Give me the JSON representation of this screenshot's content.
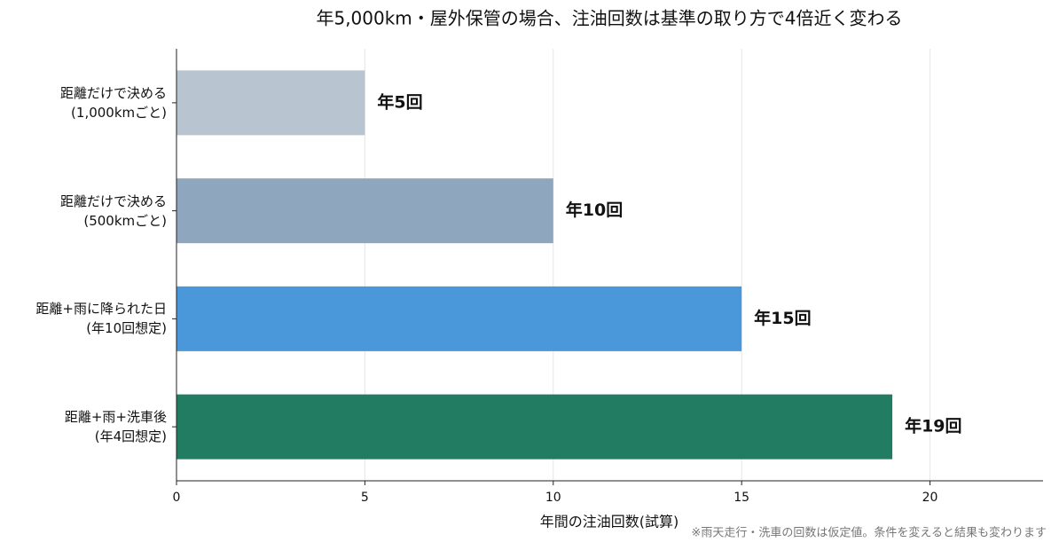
{
  "chart_data": {
    "type": "barh",
    "title": "年5,000km・屋外保管の場合、注油回数は基準の取り方で4倍近く変わる",
    "categories": [
      "距離だけで決める\n(1,000kmごと)",
      "距離だけで決める\n(500kmごと)",
      "距離+雨に降られた日\n(年10回想定)",
      "距離+雨+洗車後\n(年4回想定)"
    ],
    "values": [
      5,
      10,
      15,
      19
    ],
    "value_labels": [
      "年5回",
      "年10回",
      "年15回",
      "年19回"
    ],
    "colors": [
      "#b8c5d1",
      "#8fa7be",
      "#4a98d9",
      "#217c62"
    ],
    "xlabel": "年間の注油回数(試算)",
    "xlim": [
      0,
      23
    ],
    "xticks": [
      0,
      5,
      10,
      15,
      20
    ],
    "grid": true,
    "note": "※雨天走行・洗車の回数は仮定値。条件を変えると結果も変わります"
  }
}
